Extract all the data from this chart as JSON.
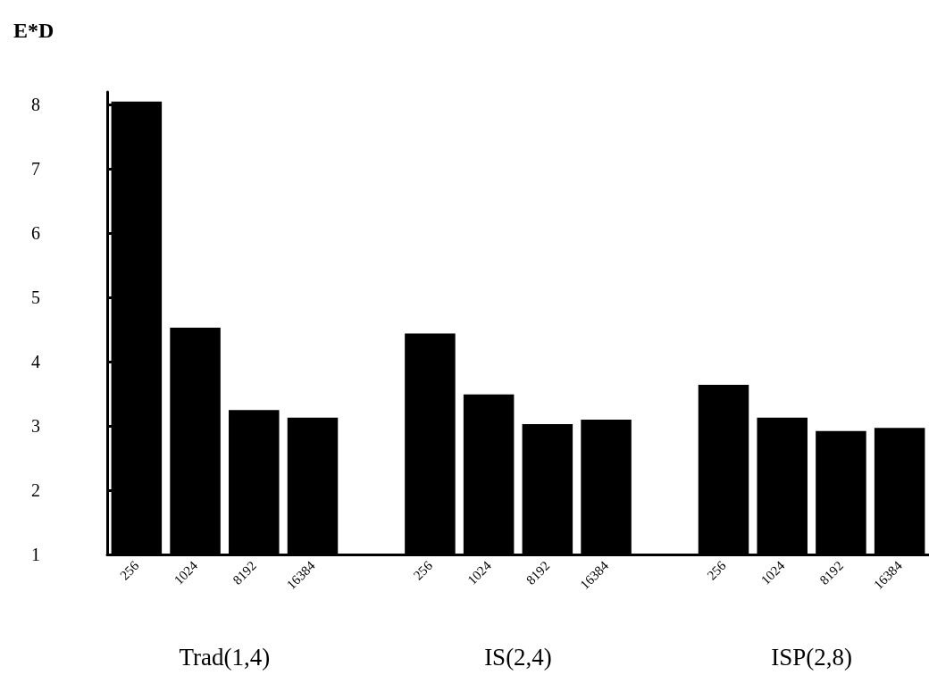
{
  "chart_data": {
    "type": "bar",
    "ylabel": "E*D",
    "categories": [
      "256",
      "1024",
      "8192",
      "16384",
      null,
      "256",
      "1024",
      "8192",
      "16384",
      null,
      "256",
      "1024",
      "8192",
      "16384"
    ],
    "values": [
      8.05,
      4.53,
      3.25,
      3.13,
      null,
      4.44,
      3.49,
      3.03,
      3.1,
      null,
      3.64,
      3.13,
      2.92,
      2.97
    ],
    "color": "#000000",
    "ylim": [
      1,
      8.2
    ],
    "yticks": [
      1,
      2,
      3,
      4,
      5,
      6,
      7,
      8
    ],
    "grid": false,
    "annotations": [
      "Trad(1,4)",
      "IS(2,4)",
      "ISP(2,8)"
    ]
  }
}
